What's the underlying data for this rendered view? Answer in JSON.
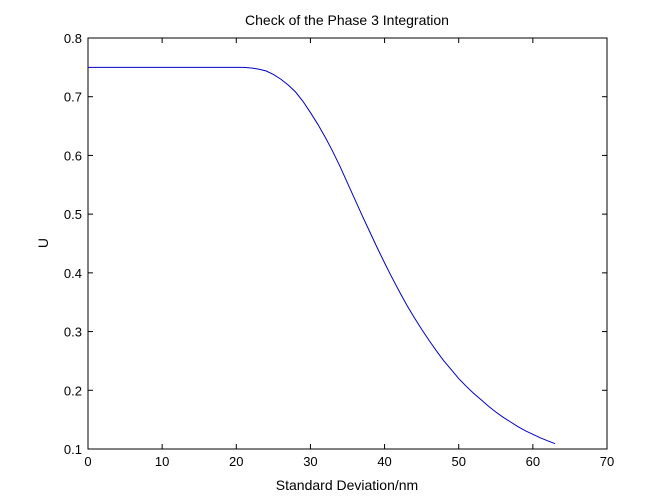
{
  "chart_data": {
    "type": "line",
    "title": "Check of the Phase 3 Integration",
    "xlabel": "Standard Deviation/nm",
    "ylabel": "U",
    "xlim": [
      0,
      70
    ],
    "ylim": [
      0.1,
      0.8
    ],
    "xticks": [
      0,
      10,
      20,
      30,
      40,
      50,
      60,
      70
    ],
    "yticks": [
      0.1,
      0.2,
      0.3,
      0.4,
      0.5,
      0.6,
      0.7,
      0.8
    ],
    "grid": false,
    "series": [
      {
        "color": "#0000cc",
        "x": [
          0,
          5,
          10,
          15,
          20,
          21,
          22,
          23,
          24,
          25,
          26,
          27,
          28,
          29,
          30,
          31,
          32,
          33,
          34,
          35,
          36,
          37,
          38,
          39,
          40,
          41,
          42,
          43,
          44,
          45,
          46,
          47,
          48,
          49,
          50,
          51,
          52,
          53,
          54,
          55,
          56,
          57,
          58,
          59,
          60,
          61,
          62,
          63
        ],
        "y": [
          0.75,
          0.75,
          0.75,
          0.75,
          0.75,
          0.75,
          0.749,
          0.747,
          0.744,
          0.738,
          0.73,
          0.72,
          0.708,
          0.692,
          0.673,
          0.653,
          0.631,
          0.607,
          0.581,
          0.553,
          0.525,
          0.497,
          0.47,
          0.443,
          0.417,
          0.392,
          0.368,
          0.345,
          0.324,
          0.304,
          0.285,
          0.267,
          0.25,
          0.235,
          0.22,
          0.207,
          0.195,
          0.184,
          0.173,
          0.163,
          0.154,
          0.146,
          0.138,
          0.131,
          0.125,
          0.119,
          0.114,
          0.109
        ]
      }
    ]
  }
}
